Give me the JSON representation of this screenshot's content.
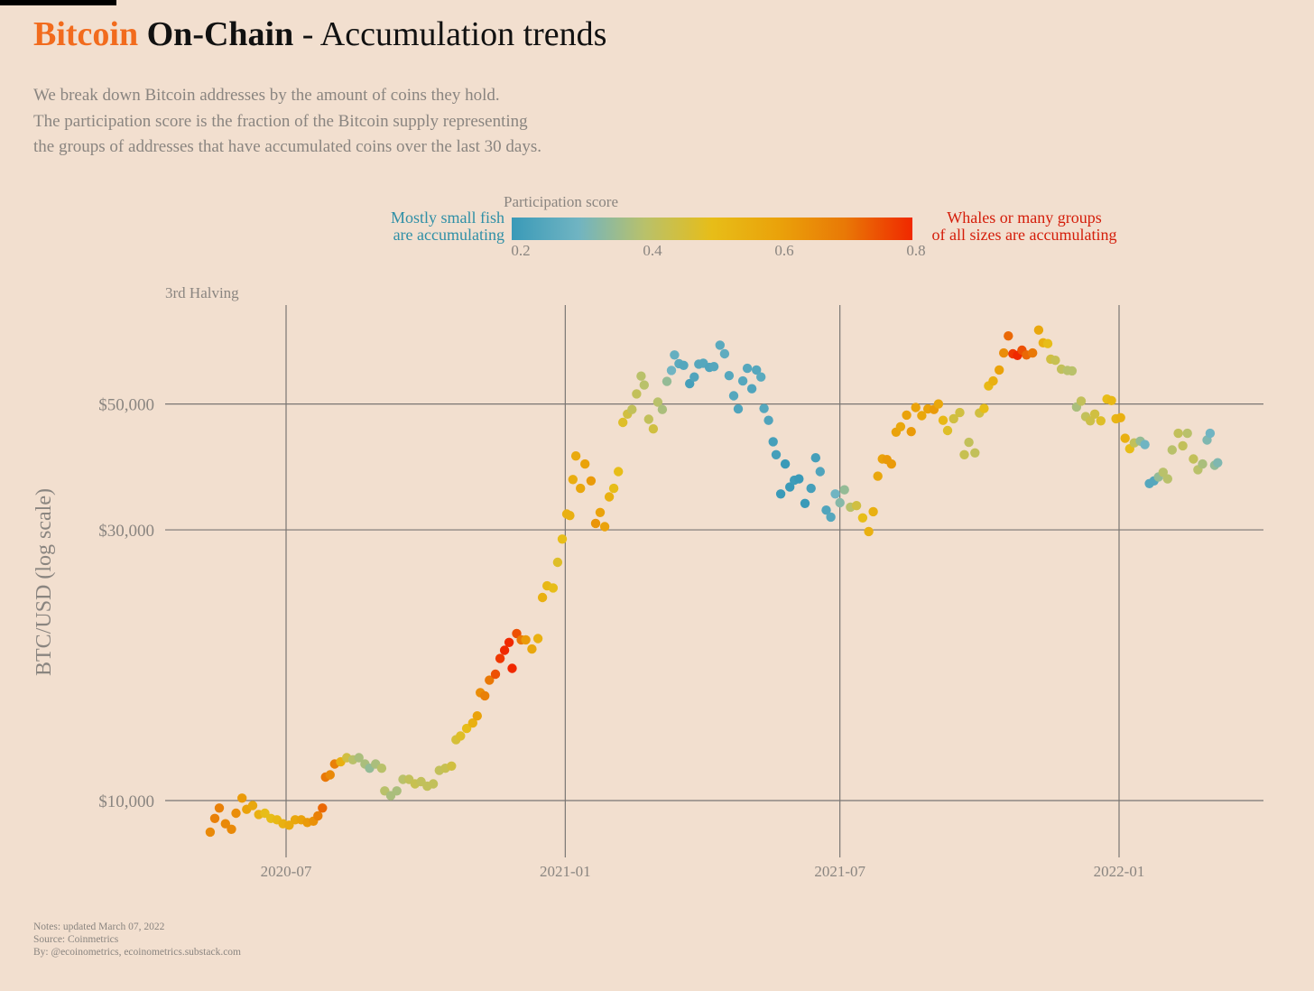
{
  "header": {
    "title_part1": "Bitcoin",
    "title_part2": "On-Chain",
    "title_part3": " - Accumulation trends",
    "subtitle": [
      "We break down Bitcoin addresses by the amount of coins they hold.",
      "The participation score is the fraction of the Bitcoin supply representing",
      "the groups of addresses that have accumulated coins over the last 30 days."
    ]
  },
  "legend": {
    "title": "Participation score",
    "left_label": [
      "Mostly small fish",
      "are accumulating"
    ],
    "right_label": [
      "Whales or many groups",
      "of all sizes are accumulating"
    ],
    "ticks": [
      "0.2",
      "0.4",
      "0.6",
      "0.8"
    ],
    "range": [
      0.2,
      0.8
    ],
    "colors": [
      {
        "score": 0.2,
        "color": "#3a9ab8"
      },
      {
        "score": 0.3,
        "color": "#70b4c2"
      },
      {
        "score": 0.4,
        "color": "#b9c16a"
      },
      {
        "score": 0.5,
        "color": "#e7bd18"
      },
      {
        "score": 0.6,
        "color": "#eaa20a"
      },
      {
        "score": 0.7,
        "color": "#e97806"
      },
      {
        "score": 0.8,
        "color": "#f02800"
      }
    ]
  },
  "footer": {
    "notes": "Notes: updated March 07, 2022",
    "source": "Source: Coinmetrics",
    "by": "By: @ecoinometrics, ecoinometrics.substack.com"
  },
  "chart_data": {
    "type": "scatter",
    "ylabel": "BTC/USD (log scale)",
    "yscale": "log",
    "ylim": [
      8000,
      72000
    ],
    "yticks": [
      {
        "value": 10000,
        "label": "$10,000"
      },
      {
        "value": 30000,
        "label": "$30,000"
      },
      {
        "value": 50000,
        "label": "$50,000"
      }
    ],
    "xlim": [
      "2020-04-10",
      "2022-03-30"
    ],
    "xticks": [
      {
        "value": "2020-07-01",
        "label": "2020-07"
      },
      {
        "value": "2021-01-01",
        "label": "2021-01"
      },
      {
        "value": "2021-07-01",
        "label": "2021-07"
      },
      {
        "value": "2022-01-01",
        "label": "2022-01"
      }
    ],
    "annotation": "3rd Halving",
    "grid": true,
    "color_by": "participation score",
    "points": [
      [
        "2020-05-12",
        8800,
        0.66
      ],
      [
        "2020-05-15",
        9300,
        0.68
      ],
      [
        "2020-05-18",
        9700,
        0.68
      ],
      [
        "2020-05-22",
        9100,
        0.66
      ],
      [
        "2020-05-26",
        8900,
        0.66
      ],
      [
        "2020-05-29",
        9500,
        0.65
      ],
      [
        "2020-06-02",
        10100,
        0.62
      ],
      [
        "2020-06-05",
        9650,
        0.6
      ],
      [
        "2020-06-09",
        9800,
        0.58
      ],
      [
        "2020-06-13",
        9450,
        0.55
      ],
      [
        "2020-06-17",
        9500,
        0.5
      ],
      [
        "2020-06-21",
        9300,
        0.5
      ],
      [
        "2020-06-25",
        9250,
        0.52
      ],
      [
        "2020-06-29",
        9100,
        0.55
      ],
      [
        "2020-07-03",
        9050,
        0.57
      ],
      [
        "2020-07-07",
        9250,
        0.58
      ],
      [
        "2020-07-11",
        9250,
        0.6
      ],
      [
        "2020-07-15",
        9150,
        0.62
      ],
      [
        "2020-07-19",
        9200,
        0.64
      ],
      [
        "2020-07-22",
        9400,
        0.68
      ],
      [
        "2020-07-25",
        9700,
        0.72
      ],
      [
        "2020-07-27",
        11000,
        0.7
      ],
      [
        "2020-07-30",
        11100,
        0.66
      ],
      [
        "2020-08-02",
        11600,
        0.68
      ],
      [
        "2020-08-06",
        11700,
        0.55
      ],
      [
        "2020-08-10",
        11900,
        0.45
      ],
      [
        "2020-08-14",
        11800,
        0.4
      ],
      [
        "2020-08-18",
        11900,
        0.38
      ],
      [
        "2020-08-22",
        11600,
        0.38
      ],
      [
        "2020-08-25",
        11400,
        0.35
      ],
      [
        "2020-08-29",
        11600,
        0.38
      ],
      [
        "2020-09-02",
        11400,
        0.4
      ],
      [
        "2020-09-04",
        10400,
        0.4
      ],
      [
        "2020-09-08",
        10200,
        0.38
      ],
      [
        "2020-09-12",
        10400,
        0.38
      ],
      [
        "2020-09-16",
        10900,
        0.4
      ],
      [
        "2020-09-20",
        10900,
        0.42
      ],
      [
        "2020-09-24",
        10700,
        0.43
      ],
      [
        "2020-09-28",
        10800,
        0.42
      ],
      [
        "2020-10-02",
        10600,
        0.42
      ],
      [
        "2020-10-06",
        10700,
        0.42
      ],
      [
        "2020-10-10",
        11300,
        0.42
      ],
      [
        "2020-10-14",
        11400,
        0.43
      ],
      [
        "2020-10-18",
        11500,
        0.45
      ],
      [
        "2020-10-21",
        12800,
        0.46
      ],
      [
        "2020-10-24",
        13000,
        0.48
      ],
      [
        "2020-10-28",
        13400,
        0.5
      ],
      [
        "2020-11-01",
        13700,
        0.55
      ],
      [
        "2020-11-04",
        14100,
        0.6
      ],
      [
        "2020-11-06",
        15500,
        0.65
      ],
      [
        "2020-11-09",
        15300,
        0.68
      ],
      [
        "2020-11-12",
        16300,
        0.7
      ],
      [
        "2020-11-16",
        16700,
        0.75
      ],
      [
        "2020-11-19",
        17800,
        0.78
      ],
      [
        "2020-11-22",
        18400,
        0.8
      ],
      [
        "2020-11-25",
        19000,
        0.8
      ],
      [
        "2020-11-27",
        17100,
        0.82
      ],
      [
        "2020-11-30",
        19700,
        0.75
      ],
      [
        "2020-12-03",
        19200,
        0.7
      ],
      [
        "2020-12-06",
        19200,
        0.62
      ],
      [
        "2020-12-10",
        18500,
        0.58
      ],
      [
        "2020-12-14",
        19300,
        0.55
      ],
      [
        "2020-12-17",
        22800,
        0.55
      ],
      [
        "2020-12-20",
        23900,
        0.52
      ],
      [
        "2020-12-24",
        23700,
        0.5
      ],
      [
        "2020-12-27",
        26300,
        0.48
      ],
      [
        "2020-12-30",
        28900,
        0.5
      ],
      [
        "2021-01-02",
        32000,
        0.55
      ],
      [
        "2021-01-04",
        31800,
        0.55
      ],
      [
        "2021-01-06",
        36800,
        0.56
      ],
      [
        "2021-01-08",
        40500,
        0.57
      ],
      [
        "2021-01-11",
        35500,
        0.58
      ],
      [
        "2021-01-14",
        39200,
        0.6
      ],
      [
        "2021-01-18",
        36600,
        0.62
      ],
      [
        "2021-01-21",
        30800,
        0.63
      ],
      [
        "2021-01-24",
        32200,
        0.6
      ],
      [
        "2021-01-27",
        30400,
        0.6
      ],
      [
        "2021-01-30",
        34300,
        0.55
      ],
      [
        "2021-02-02",
        35500,
        0.5
      ],
      [
        "2021-02-05",
        38000,
        0.5
      ],
      [
        "2021-02-08",
        46400,
        0.48
      ],
      [
        "2021-02-11",
        48000,
        0.45
      ],
      [
        "2021-02-14",
        48900,
        0.42
      ],
      [
        "2021-02-17",
        52100,
        0.42
      ],
      [
        "2021-02-20",
        56000,
        0.4
      ],
      [
        "2021-02-22",
        54000,
        0.4
      ],
      [
        "2021-02-25",
        47000,
        0.42
      ],
      [
        "2021-02-28",
        45200,
        0.45
      ],
      [
        "2021-03-03",
        50400,
        0.4
      ],
      [
        "2021-03-06",
        48900,
        0.38
      ],
      [
        "2021-03-09",
        54800,
        0.35
      ],
      [
        "2021-03-12",
        57300,
        0.3
      ],
      [
        "2021-03-14",
        61000,
        0.28
      ],
      [
        "2021-03-17",
        58900,
        0.26
      ],
      [
        "2021-03-20",
        58500,
        0.25
      ],
      [
        "2021-03-24",
        54300,
        0.22
      ],
      [
        "2021-03-27",
        55800,
        0.24
      ],
      [
        "2021-03-30",
        58800,
        0.25
      ],
      [
        "2021-04-02",
        59000,
        0.25
      ],
      [
        "2021-04-06",
        58000,
        0.24
      ],
      [
        "2021-04-09",
        58200,
        0.25
      ],
      [
        "2021-04-13",
        63500,
        0.26
      ],
      [
        "2021-04-16",
        61300,
        0.27
      ],
      [
        "2021-04-19",
        56100,
        0.25
      ],
      [
        "2021-04-22",
        51700,
        0.25
      ],
      [
        "2021-04-25",
        49000,
        0.24
      ],
      [
        "2021-04-28",
        54900,
        0.25
      ],
      [
        "2021-05-01",
        57800,
        0.25
      ],
      [
        "2021-05-04",
        53200,
        0.24
      ],
      [
        "2021-05-07",
        57400,
        0.25
      ],
      [
        "2021-05-10",
        55800,
        0.26
      ],
      [
        "2021-05-12",
        49100,
        0.25
      ],
      [
        "2021-05-15",
        46800,
        0.24
      ],
      [
        "2021-05-18",
        42900,
        0.22
      ],
      [
        "2021-05-20",
        40700,
        0.22
      ],
      [
        "2021-05-23",
        34700,
        0.2
      ],
      [
        "2021-05-26",
        39200,
        0.2
      ],
      [
        "2021-05-29",
        35700,
        0.2
      ],
      [
        "2021-06-01",
        36700,
        0.21
      ],
      [
        "2021-06-04",
        36900,
        0.2
      ],
      [
        "2021-06-08",
        33400,
        0.2
      ],
      [
        "2021-06-12",
        35500,
        0.22
      ],
      [
        "2021-06-15",
        40200,
        0.22
      ],
      [
        "2021-06-18",
        38000,
        0.24
      ],
      [
        "2021-06-22",
        32500,
        0.24
      ],
      [
        "2021-06-25",
        31600,
        0.25
      ],
      [
        "2021-06-28",
        34700,
        0.3
      ],
      [
        "2021-07-01",
        33500,
        0.33
      ],
      [
        "2021-07-04",
        35300,
        0.35
      ],
      [
        "2021-07-08",
        32900,
        0.4
      ],
      [
        "2021-07-12",
        33100,
        0.45
      ],
      [
        "2021-07-16",
        31500,
        0.5
      ],
      [
        "2021-07-20",
        29800,
        0.55
      ],
      [
        "2021-07-23",
        32300,
        0.55
      ],
      [
        "2021-07-26",
        37300,
        0.58
      ],
      [
        "2021-07-29",
        40000,
        0.6
      ],
      [
        "2021-08-01",
        39900,
        0.62
      ],
      [
        "2021-08-04",
        39200,
        0.62
      ],
      [
        "2021-08-07",
        44600,
        0.6
      ],
      [
        "2021-08-10",
        45600,
        0.58
      ],
      [
        "2021-08-14",
        47800,
        0.6
      ],
      [
        "2021-08-17",
        44700,
        0.62
      ],
      [
        "2021-08-20",
        49300,
        0.6
      ],
      [
        "2021-08-24",
        47700,
        0.58
      ],
      [
        "2021-08-28",
        49000,
        0.6
      ],
      [
        "2021-09-01",
        48900,
        0.62
      ],
      [
        "2021-09-04",
        50000,
        0.58
      ],
      [
        "2021-09-07",
        46800,
        0.52
      ],
      [
        "2021-09-10",
        44900,
        0.48
      ],
      [
        "2021-09-14",
        47100,
        0.45
      ],
      [
        "2021-09-18",
        48300,
        0.45
      ],
      [
        "2021-09-21",
        40700,
        0.43
      ],
      [
        "2021-09-24",
        42800,
        0.42
      ],
      [
        "2021-09-28",
        41000,
        0.42
      ],
      [
        "2021-10-01",
        48200,
        0.45
      ],
      [
        "2021-10-04",
        49100,
        0.5
      ],
      [
        "2021-10-07",
        53800,
        0.52
      ],
      [
        "2021-10-10",
        54900,
        0.55
      ],
      [
        "2021-10-14",
        57400,
        0.6
      ],
      [
        "2021-10-17",
        61500,
        0.65
      ],
      [
        "2021-10-20",
        65900,
        0.72
      ],
      [
        "2021-10-23",
        61300,
        0.78
      ],
      [
        "2021-10-26",
        60900,
        0.8
      ],
      [
        "2021-10-29",
        62200,
        0.75
      ],
      [
        "2021-11-01",
        61000,
        0.72
      ],
      [
        "2021-11-05",
        61500,
        0.7
      ],
      [
        "2021-11-09",
        67500,
        0.58
      ],
      [
        "2021-11-12",
        64100,
        0.55
      ],
      [
        "2021-11-15",
        63900,
        0.5
      ],
      [
        "2021-11-17",
        60000,
        0.45
      ],
      [
        "2021-11-20",
        59700,
        0.43
      ],
      [
        "2021-11-24",
        57600,
        0.42
      ],
      [
        "2021-11-28",
        57300,
        0.4
      ],
      [
        "2021-12-01",
        57200,
        0.4
      ],
      [
        "2021-12-04",
        49400,
        0.38
      ],
      [
        "2021-12-07",
        50600,
        0.42
      ],
      [
        "2021-12-10",
        47500,
        0.42
      ],
      [
        "2021-12-13",
        46700,
        0.44
      ],
      [
        "2021-12-16",
        48000,
        0.45
      ],
      [
        "2021-12-20",
        46700,
        0.48
      ],
      [
        "2021-12-24",
        51000,
        0.5
      ],
      [
        "2021-12-27",
        50700,
        0.52
      ],
      [
        "2021-12-30",
        47100,
        0.53
      ],
      [
        "2022-01-02",
        47300,
        0.55
      ],
      [
        "2022-01-05",
        43500,
        0.55
      ],
      [
        "2022-01-08",
        41700,
        0.5
      ],
      [
        "2022-01-11",
        42700,
        0.42
      ],
      [
        "2022-01-15",
        43000,
        0.35
      ],
      [
        "2022-01-18",
        42400,
        0.3
      ],
      [
        "2022-01-21",
        36200,
        0.25
      ],
      [
        "2022-01-24",
        36600,
        0.25
      ],
      [
        "2022-01-27",
        37200,
        0.35
      ],
      [
        "2022-01-30",
        37900,
        0.4
      ],
      [
        "2022-02-02",
        36900,
        0.4
      ],
      [
        "2022-02-05",
        41500,
        0.4
      ],
      [
        "2022-02-09",
        44400,
        0.42
      ],
      [
        "2022-02-12",
        42200,
        0.42
      ],
      [
        "2022-02-15",
        44400,
        0.4
      ],
      [
        "2022-02-19",
        40000,
        0.42
      ],
      [
        "2022-02-22",
        38300,
        0.4
      ],
      [
        "2022-02-25",
        39200,
        0.38
      ],
      [
        "2022-02-28",
        43200,
        0.32
      ],
      [
        "2022-03-02",
        44400,
        0.3
      ],
      [
        "2022-03-05",
        39000,
        0.35
      ],
      [
        "2022-03-07",
        39400,
        0.32
      ]
    ]
  }
}
